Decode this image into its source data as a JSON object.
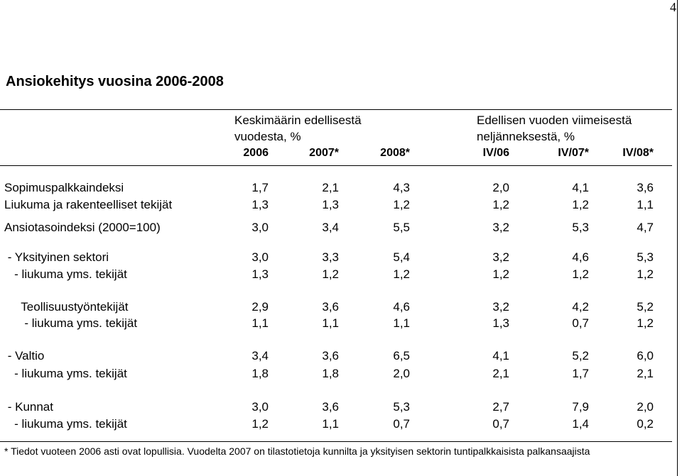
{
  "page_number": "4",
  "title": "Ansiokehitys vuosina 2006-2008",
  "header": {
    "group_left": [
      "Keskimäärin edellisestä",
      "vuodesta, %"
    ],
    "group_right": [
      "Edellisen vuoden viimeisestä",
      "neljänneksestä, %"
    ],
    "columns": [
      "2006",
      "2007*",
      "2008*",
      "IV/06",
      "IV/07*",
      "IV/08*"
    ]
  },
  "rows": [
    {
      "label": "Sopimuspalkkaindeksi",
      "values": [
        "1,7",
        "2,1",
        "4,3",
        "2,0",
        "4,1",
        "3,6"
      ]
    },
    {
      "label": "Liukuma ja rakenteelliset tekijät",
      "values": [
        "1,3",
        "1,3",
        "1,2",
        "1,2",
        "1,2",
        "1,1"
      ]
    },
    {
      "label": "Ansiotasoindeksi (2000=100)",
      "values": [
        "3,0",
        "3,4",
        "5,5",
        "3,2",
        "5,3",
        "4,7"
      ]
    },
    {
      "label": " - Yksityinen sektori",
      "values": [
        "3,0",
        "3,3",
        "5,4",
        "3,2",
        "4,6",
        "5,3"
      ]
    },
    {
      "label": "   - liukuma yms. tekijät",
      "values": [
        "1,3",
        "1,2",
        "1,2",
        "1,2",
        "1,2",
        "1,2"
      ]
    },
    {
      "label": "     Teollisuustyöntekijät",
      "values": [
        "2,9",
        "3,6",
        "4,6",
        "3,2",
        "4,2",
        "5,2"
      ]
    },
    {
      "label": "      - liukuma yms. tekijät",
      "values": [
        "1,1",
        "1,1",
        "1,1",
        "1,3",
        "0,7",
        "1,2"
      ]
    },
    {
      "label": " - Valtio",
      "values": [
        "3,4",
        "3,6",
        "6,5",
        "4,1",
        "5,2",
        "6,0"
      ]
    },
    {
      "label": "   - liukuma yms. tekijät",
      "values": [
        "1,8",
        "1,8",
        "2,0",
        "2,1",
        "1,7",
        "2,1"
      ]
    },
    {
      "label": " - Kunnat",
      "values": [
        "3,0",
        "3,6",
        "5,3",
        "2,7",
        "7,9",
        "2,0"
      ]
    },
    {
      "label": "   - liukuma yms. tekijät",
      "values": [
        "1,2",
        "1,1",
        "0,7",
        "0,7",
        "1,4",
        "0,2"
      ]
    }
  ],
  "footnote": "* Tiedot vuoteen 2006 asti ovat lopullisia. Vuodelta 2007 on tilastotietoja kunnilta ja yksityisen sektorin tuntipalkkaisista palkansaajista"
}
